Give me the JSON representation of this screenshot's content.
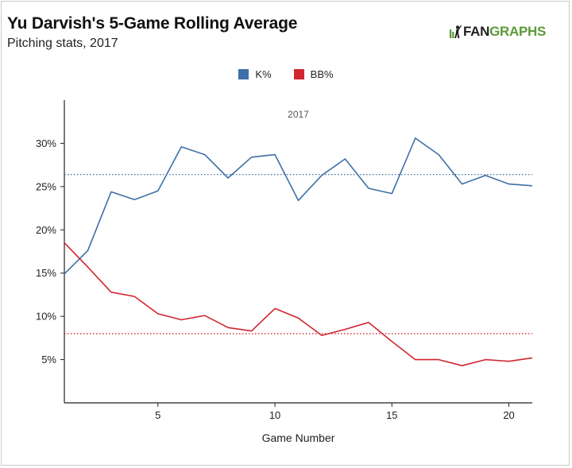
{
  "header": {
    "title": "Yu Darvish's 5-Game Rolling Average",
    "subtitle": "Pitching stats, 2017",
    "brand_prefix": "FAN",
    "brand_suffix": "GRAPHS"
  },
  "colors": {
    "k_pct": "#3e6fa6",
    "bb_pct": "#d1252f",
    "axis": "#222222",
    "brand_green": "#5b9a38"
  },
  "chart_data": {
    "type": "line",
    "panel_label": "2017",
    "xlabel": "Game Number",
    "ylabel": "",
    "xlim": [
      1,
      21
    ],
    "ylim": [
      0.0,
      0.35
    ],
    "x_ticks": [
      5,
      10,
      15,
      20
    ],
    "y_ticks": [
      0.05,
      0.1,
      0.15,
      0.2,
      0.25,
      0.3
    ],
    "y_tick_labels": [
      "5%",
      "10%",
      "15%",
      "20%",
      "25%",
      "30%"
    ],
    "grid": false,
    "legend_position": "top-center",
    "x": [
      1,
      2,
      3,
      4,
      5,
      6,
      7,
      8,
      9,
      10,
      11,
      12,
      13,
      14,
      15,
      16,
      17,
      18,
      19,
      20,
      21
    ],
    "series": [
      {
        "name": "K%",
        "color_key": "k_pct",
        "values": [
          0.149,
          0.176,
          0.244,
          0.235,
          0.245,
          0.296,
          0.287,
          0.26,
          0.284,
          0.287,
          0.234,
          0.263,
          0.282,
          0.248,
          0.242,
          0.306,
          0.287,
          0.253,
          0.263,
          0.253,
          0.251
        ],
        "reference_line": 0.264
      },
      {
        "name": "BB%",
        "color_key": "bb_pct",
        "values": [
          0.185,
          0.157,
          0.128,
          0.123,
          0.103,
          0.096,
          0.101,
          0.087,
          0.083,
          0.109,
          0.098,
          0.078,
          0.085,
          0.093,
          0.071,
          0.05,
          0.05,
          0.043,
          0.05,
          0.048,
          0.052
        ],
        "reference_line": 0.08
      }
    ]
  }
}
